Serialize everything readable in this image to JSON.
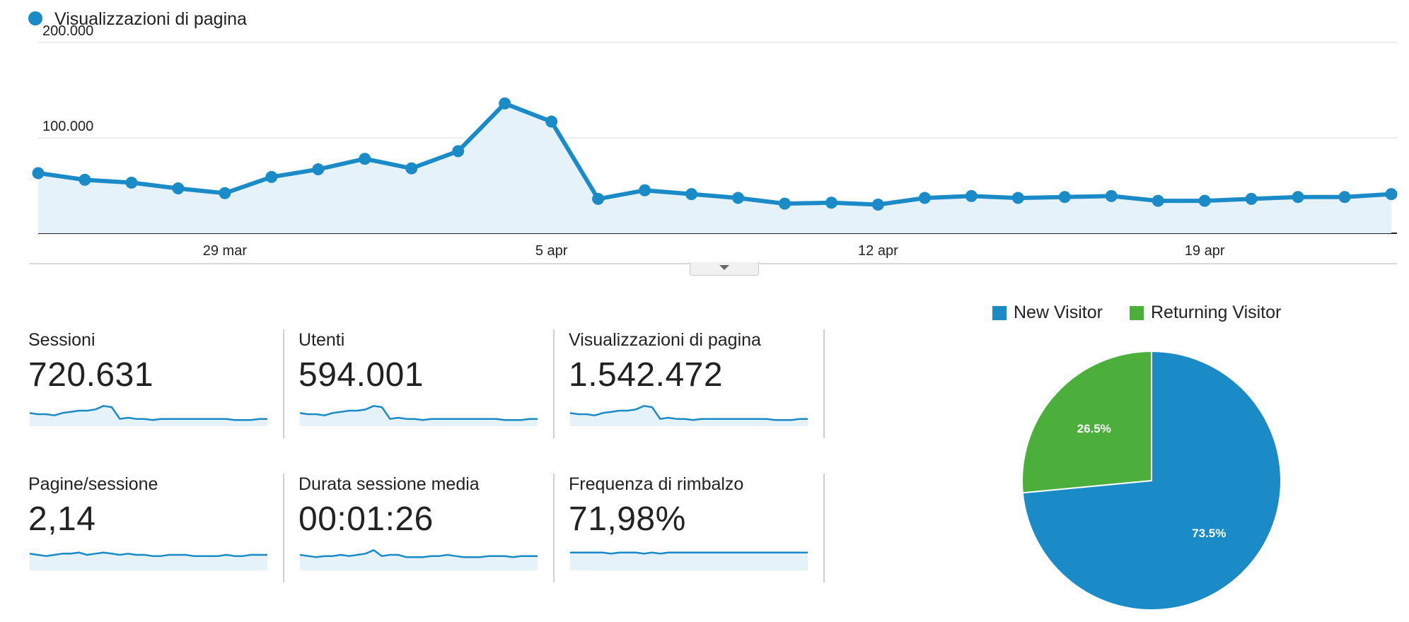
{
  "colors": {
    "primary": "#1a8bc6",
    "area_fill": "#e6f2f9",
    "returning": "#4caf3c",
    "grid": "#e6e6e6",
    "axis": "#222222"
  },
  "main_chart": {
    "legend_label": "Visualizzazioni di pagina",
    "toggle_icon": "chevron-down-icon"
  },
  "chart_data": [
    {
      "type": "area",
      "series": [
        {
          "name": "Visualizzazioni di pagina",
          "values": [
            63000,
            56000,
            53000,
            47000,
            42000,
            59000,
            67000,
            78000,
            68000,
            86000,
            136000,
            117000,
            36000,
            45000,
            41000,
            37000,
            31000,
            32000,
            30000,
            37000,
            39000,
            37000,
            38000,
            39000,
            34000,
            34000,
            36000,
            38000,
            38000,
            41000
          ]
        }
      ],
      "x_tick_labels": [
        {
          "index": 4,
          "label": "29 mar"
        },
        {
          "index": 11,
          "label": "5 apr"
        },
        {
          "index": 18,
          "label": "12 apr"
        },
        {
          "index": 25,
          "label": "19 apr"
        }
      ],
      "y_tick_labels": [
        {
          "value": 100000,
          "label": "100.000"
        },
        {
          "value": 200000,
          "label": "200.000"
        }
      ],
      "ylim": [
        0,
        200000
      ],
      "grid": true,
      "legend": "top-left"
    },
    {
      "type": "pie",
      "slices": [
        {
          "name": "New Visitor",
          "value": 73.5,
          "label": "73.5%",
          "color": "#1a8bc6"
        },
        {
          "name": "Returning Visitor",
          "value": 26.5,
          "label": "26.5%",
          "color": "#4caf3c"
        }
      ],
      "legend": "top"
    }
  ],
  "metrics": [
    {
      "label": "Sessioni",
      "value": "720.631",
      "spark": [
        10,
        9,
        9,
        8,
        10,
        11,
        12,
        12,
        13,
        16,
        15,
        5,
        6,
        5,
        5,
        4,
        5,
        5,
        5,
        5,
        5,
        5,
        5,
        5,
        5,
        4,
        4,
        4,
        5,
        5
      ]
    },
    {
      "label": "Utenti",
      "value": "594.001",
      "spark": [
        10,
        9,
        9,
        8,
        10,
        11,
        12,
        12,
        13,
        16,
        15,
        5,
        6,
        5,
        5,
        4,
        5,
        5,
        5,
        5,
        5,
        5,
        5,
        5,
        5,
        4,
        4,
        4,
        5,
        5
      ]
    },
    {
      "label": "Visualizzazioni di pagina",
      "value": "1.542.472",
      "spark": [
        10,
        9,
        9,
        8,
        10,
        11,
        12,
        12,
        13,
        16,
        15,
        5,
        6,
        5,
        5,
        4,
        5,
        5,
        5,
        5,
        5,
        5,
        5,
        5,
        5,
        4,
        4,
        4,
        5,
        5
      ]
    },
    {
      "label": "Pagine/sessione",
      "value": "2,14",
      "spark": [
        13,
        12,
        11,
        12,
        13,
        13,
        14,
        12,
        13,
        14,
        13,
        12,
        13,
        12,
        12,
        11,
        11,
        12,
        12,
        12,
        11,
        11,
        11,
        11,
        12,
        11,
        11,
        12,
        12,
        12
      ]
    },
    {
      "label": "Durata sessione media",
      "value": "00:01:26",
      "spark": [
        12,
        11,
        10,
        11,
        11,
        12,
        11,
        12,
        13,
        16,
        11,
        12,
        12,
        10,
        10,
        10,
        11,
        11,
        12,
        11,
        10,
        10,
        10,
        11,
        11,
        11,
        10,
        11,
        11,
        11
      ]
    },
    {
      "label": "Frequenza di rimbalzo",
      "value": "71,98%",
      "spark": [
        14,
        14,
        14,
        14,
        14,
        13,
        14,
        14,
        14,
        13,
        14,
        13,
        14,
        14,
        14,
        14,
        14,
        14,
        14,
        14,
        14,
        14,
        14,
        14,
        14,
        14,
        14,
        14,
        14,
        14
      ]
    }
  ]
}
